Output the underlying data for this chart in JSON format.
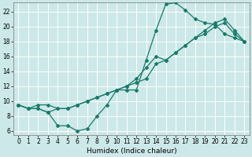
{
  "xlabel": "Humidex (Indice chaleur)",
  "bg_color": "#cce8e8",
  "grid_color": "#ffffff",
  "line_color": "#1a7a6a",
  "xlim": [
    -0.5,
    23.5
  ],
  "ylim": [
    5.5,
    23.2
  ],
  "xticks": [
    0,
    1,
    2,
    3,
    4,
    5,
    6,
    7,
    8,
    9,
    10,
    11,
    12,
    13,
    14,
    15,
    16,
    17,
    18,
    19,
    20,
    21,
    22,
    23
  ],
  "yticks": [
    6,
    8,
    10,
    12,
    14,
    16,
    18,
    20,
    22
  ],
  "curve1_x": [
    0,
    1,
    2,
    3,
    4,
    5,
    6,
    7,
    8,
    9,
    10,
    11,
    12,
    13,
    14,
    15,
    16,
    17,
    18,
    19,
    20,
    21,
    22,
    23
  ],
  "curve1_y": [
    9.5,
    9.0,
    9.0,
    8.5,
    6.7,
    6.7,
    6.0,
    6.3,
    8.0,
    9.5,
    11.5,
    11.5,
    11.5,
    15.5,
    19.5,
    23.0,
    23.2,
    22.2,
    21.0,
    20.5,
    20.3,
    19.0,
    18.5,
    18.0
  ],
  "curve2_x": [
    0,
    1,
    2,
    3,
    4,
    5,
    6,
    7,
    8,
    9,
    10,
    11,
    12,
    13,
    14,
    15,
    16,
    17,
    18,
    19,
    20,
    21,
    22,
    23
  ],
  "curve2_y": [
    9.5,
    9.0,
    9.5,
    9.5,
    9.0,
    9.0,
    9.5,
    10.0,
    10.5,
    11.0,
    11.5,
    12.0,
    12.5,
    13.0,
    15.0,
    15.5,
    16.5,
    17.5,
    18.5,
    19.0,
    20.0,
    20.5,
    19.0,
    18.0
  ],
  "curve3_x": [
    0,
    1,
    2,
    3,
    4,
    5,
    6,
    7,
    8,
    9,
    10,
    11,
    12,
    13,
    14,
    15,
    16,
    17,
    18,
    19,
    20,
    21,
    22,
    23
  ],
  "curve3_y": [
    9.5,
    9.0,
    9.0,
    8.5,
    9.0,
    9.0,
    9.5,
    10.0,
    10.5,
    11.0,
    11.5,
    12.0,
    13.0,
    14.5,
    16.0,
    15.5,
    16.5,
    17.5,
    18.5,
    19.5,
    20.5,
    21.0,
    19.5,
    18.0
  ],
  "xlabel_fontsize": 6.5,
  "tick_fontsize": 5.5,
  "marker_size": 2.0,
  "line_width": 0.9
}
